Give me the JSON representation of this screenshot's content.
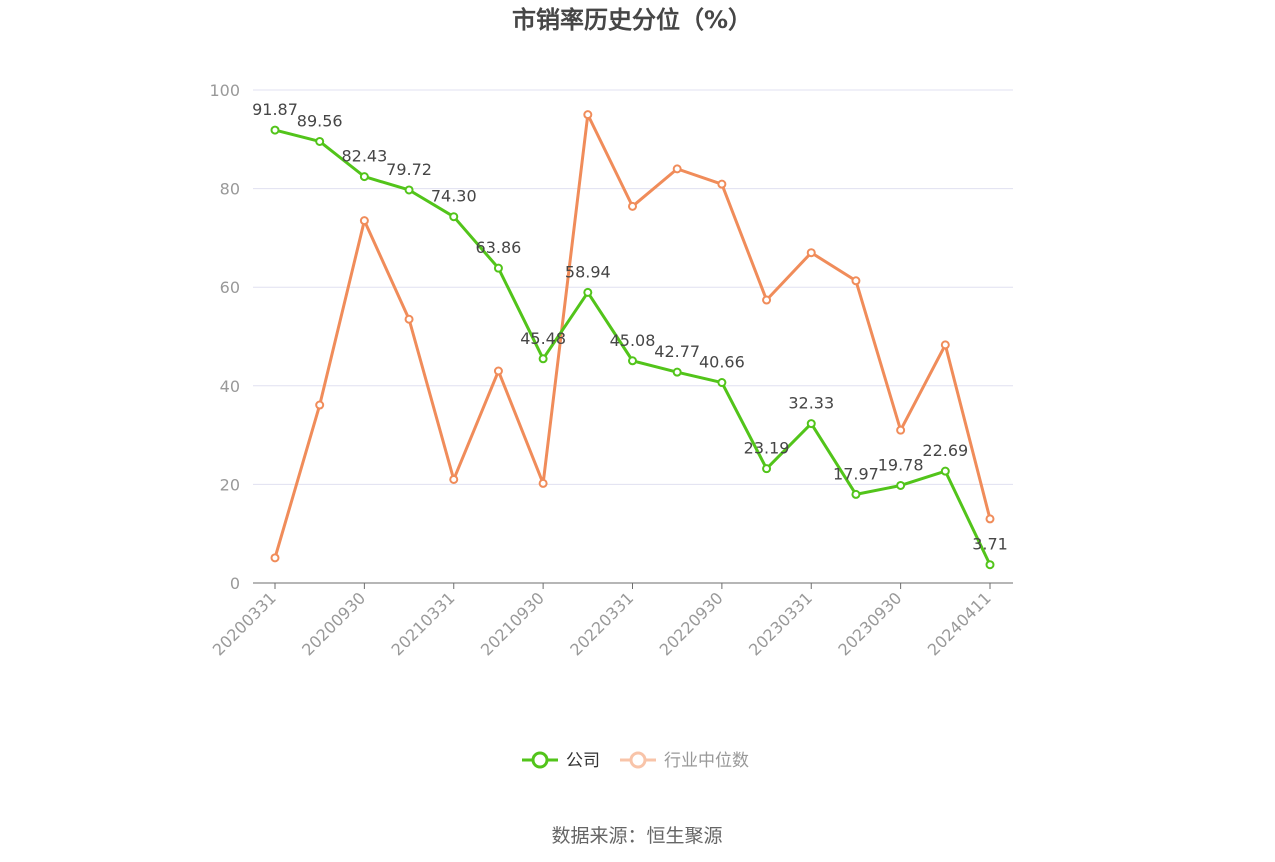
{
  "chart_data": {
    "type": "line",
    "title": "市销率历史分位（%）",
    "ylim": [
      0,
      100
    ],
    "yticks": [
      0,
      20,
      40,
      60,
      80,
      100
    ],
    "x": [
      "20200331",
      "20200630",
      "20200930",
      "20201231",
      "20210331",
      "20210630",
      "20210930",
      "20211231",
      "20220331",
      "20220630",
      "20220930",
      "20221231",
      "20230331",
      "20230630",
      "20230930",
      "20231231",
      "20240411"
    ],
    "xtick_labels": [
      "20200331",
      "20200930",
      "20210331",
      "20210930",
      "20220331",
      "20220930",
      "20230331",
      "20230930",
      "20240411"
    ],
    "grid": true,
    "legend_position": "bottom-center",
    "series": [
      {
        "name": "公司",
        "color": "#52c41a",
        "values": [
          91.87,
          89.56,
          82.43,
          79.72,
          74.3,
          63.86,
          45.48,
          58.94,
          45.08,
          42.77,
          40.66,
          23.19,
          32.33,
          17.97,
          19.78,
          22.69,
          3.71
        ],
        "labels": [
          "91.87",
          "89.56",
          "82.43",
          "79.72",
          "74.30",
          "63.86",
          "45.48",
          "58.94",
          "45.08",
          "42.77",
          "40.66",
          "23.19",
          "32.33",
          "17.97",
          "19.78",
          "22.69",
          "3.71"
        ]
      },
      {
        "name": "行业中位数",
        "color": "#f08c5a",
        "values": [
          5.1,
          36.1,
          73.5,
          53.5,
          21.0,
          43.0,
          20.2,
          95.0,
          76.4,
          84.0,
          80.9,
          57.4,
          67.0,
          61.3,
          31.0,
          48.3,
          13.0
        ]
      }
    ]
  },
  "legend": {
    "company": "公司",
    "industry": "行业中位数"
  },
  "source": "数据来源：恒生聚源"
}
